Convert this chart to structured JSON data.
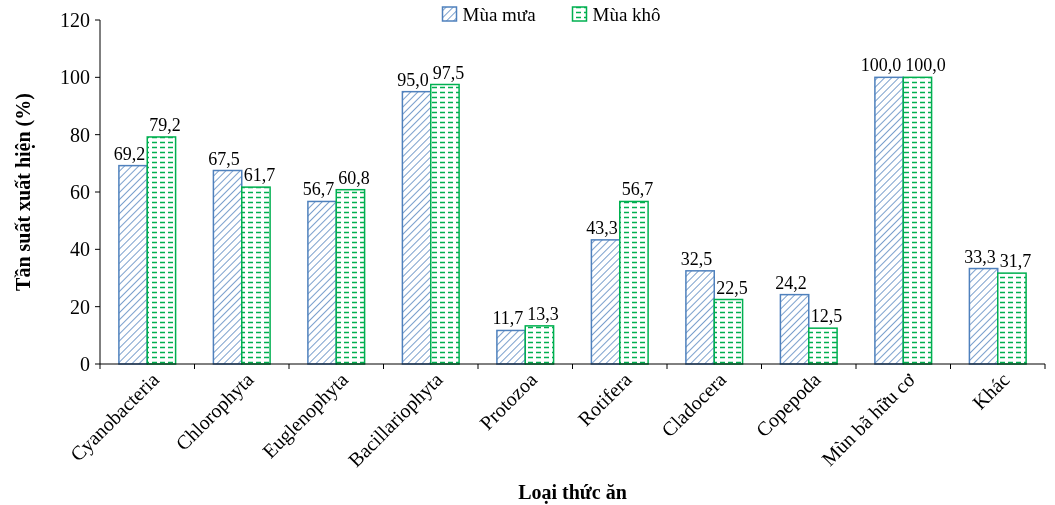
{
  "chart_data": {
    "type": "bar",
    "xlabel": "Loại thức ăn",
    "ylabel": "Tần suất xuất hiện (%)",
    "categories": [
      "Cyanobacteria",
      "Chlorophyta",
      "Euglenophyta",
      "Bacillariophyta",
      "Protozoa",
      "Rotifera",
      "Cladocera",
      "Copepoda",
      "Mùn bã hữu cơ",
      "Khác"
    ],
    "series": [
      {
        "name": "Mùa mưa",
        "color": "#4f81bd",
        "values": [
          69.2,
          67.5,
          56.7,
          95.0,
          11.7,
          43.3,
          32.5,
          24.2,
          100.0,
          33.3
        ],
        "value_labels": [
          "69,2",
          "67,5",
          "56,7",
          "95,0",
          "11,7",
          "43,3",
          "32,5",
          "24,2",
          "100,0",
          "33,3"
        ]
      },
      {
        "name": "Mùa khô",
        "color": "#00b050",
        "values": [
          79.2,
          61.7,
          60.8,
          97.5,
          13.3,
          56.7,
          22.5,
          12.5,
          100.0,
          31.7
        ],
        "value_labels": [
          "79,2",
          "61,7",
          "60,8",
          "97,5",
          "13,3",
          "56,7",
          "22,5",
          "12,5",
          "100,0",
          "31,7"
        ]
      }
    ],
    "ylim": [
      0,
      120
    ],
    "yticks": [
      0,
      20,
      40,
      60,
      80,
      100,
      120
    ],
    "grid": false,
    "legend": "top"
  }
}
